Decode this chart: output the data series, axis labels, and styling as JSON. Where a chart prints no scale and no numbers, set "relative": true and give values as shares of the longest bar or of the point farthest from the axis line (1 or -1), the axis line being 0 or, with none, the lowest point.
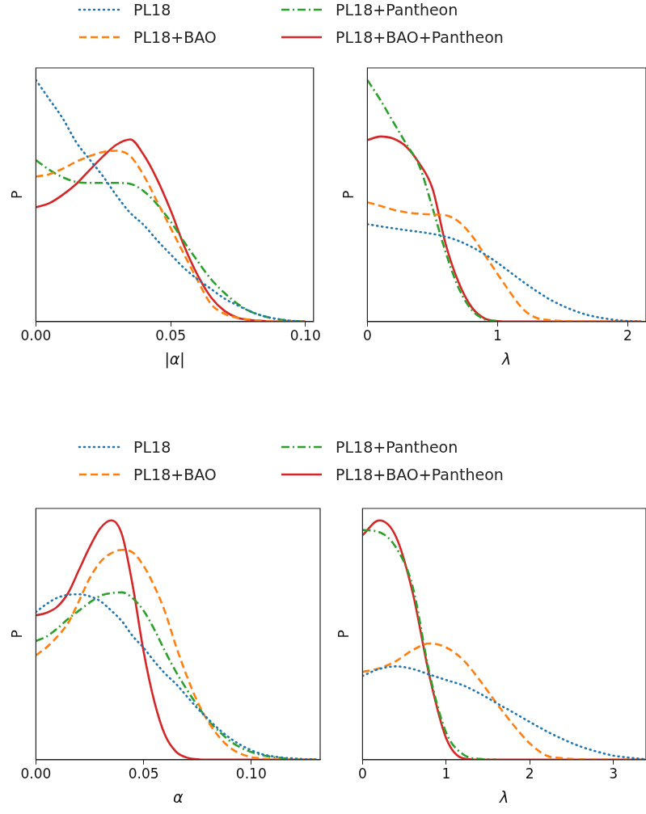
{
  "chart_data": [
    {
      "type": "line",
      "relative": true,
      "xlabel": "|α|",
      "ylabel": "P",
      "legend": "top",
      "xlim": [
        0,
        0.103
      ],
      "xticks": [
        {
          "value": 0,
          "label": "0.00"
        },
        {
          "value": 0.05,
          "label": "0.05"
        },
        {
          "value": 0.1,
          "label": "0.10"
        }
      ],
      "x": [
        0,
        0.005,
        0.01,
        0.015,
        0.02,
        0.025,
        0.03,
        0.035,
        0.04,
        0.045,
        0.05,
        0.055,
        0.06,
        0.065,
        0.07,
        0.075,
        0.08,
        0.085,
        0.09,
        0.095,
        0.1
      ],
      "series": [
        {
          "name": "PL18",
          "color": "#1f77b4",
          "line_style": "dotted",
          "values": [
            1.0,
            0.92,
            0.84,
            0.742,
            0.67,
            0.6,
            0.52,
            0.45,
            0.4,
            0.336,
            0.278,
            0.221,
            0.175,
            0.135,
            0.095,
            0.066,
            0.04,
            0.021,
            0.01,
            0.003,
            0
          ]
        },
        {
          "name": "PL18+BAO",
          "color": "#ff7f0e",
          "line_style": "dashed",
          "values": [
            0.6,
            0.61,
            0.633,
            0.662,
            0.685,
            0.702,
            0.707,
            0.685,
            0.605,
            0.496,
            0.387,
            0.278,
            0.17,
            0.072,
            0.032,
            0.015,
            0.007,
            0.002,
            0,
            0,
            0
          ]
        },
        {
          "name": "PL18+Pantheon",
          "color": "#2ca02c",
          "line_style": "dashdot",
          "values": [
            0.668,
            0.628,
            0.597,
            0.578,
            0.574,
            0.574,
            0.574,
            0.57,
            0.54,
            0.485,
            0.414,
            0.33,
            0.25,
            0.175,
            0.118,
            0.072,
            0.04,
            0.021,
            0.009,
            0.003,
            0
          ]
        },
        {
          "name": "PL18+BAO+Pantheon",
          "color": "#d62728",
          "line_style": "solid",
          "values": [
            0.473,
            0.49,
            0.525,
            0.57,
            0.628,
            0.685,
            0.733,
            0.754,
            0.69,
            0.588,
            0.46,
            0.313,
            0.192,
            0.1,
            0.044,
            0.015,
            0.006,
            0.002,
            0,
            0,
            0
          ]
        }
      ]
    },
    {
      "type": "line",
      "relative": true,
      "xlabel": "λ",
      "ylabel": "P",
      "xlim": [
        0,
        2.14
      ],
      "xticks": [
        0,
        1,
        2
      ],
      "x": [
        0,
        0.1,
        0.2,
        0.3,
        0.4,
        0.5,
        0.6,
        0.7,
        0.8,
        0.9,
        1.0,
        1.1,
        1.2,
        1.3,
        1.4,
        1.5,
        1.6,
        1.7,
        1.8,
        1.9,
        2.0,
        2.1
      ],
      "series": [
        {
          "color": "#1f77b4",
          "line_style": "dotted",
          "values": [
            0.403,
            0.394,
            0.386,
            0.378,
            0.371,
            0.363,
            0.352,
            0.334,
            0.309,
            0.279,
            0.243,
            0.203,
            0.163,
            0.126,
            0.092,
            0.065,
            0.043,
            0.026,
            0.015,
            0.007,
            0.002,
            0
          ]
        },
        {
          "color": "#ff7f0e",
          "line_style": "dashed",
          "values": [
            0.494,
            0.479,
            0.463,
            0.452,
            0.446,
            0.443,
            0.44,
            0.414,
            0.357,
            0.277,
            0.197,
            0.118,
            0.049,
            0.015,
            0.006,
            0.002,
            0,
            0,
            0,
            0,
            0,
            0
          ]
        },
        {
          "color": "#2ca02c",
          "line_style": "dashdot",
          "values": [
            1.0,
            0.917,
            0.825,
            0.734,
            0.643,
            0.471,
            0.289,
            0.14,
            0.049,
            0.009,
            0,
            null,
            null,
            null,
            null,
            null,
            null,
            null,
            null,
            null,
            null,
            null
          ]
        },
        {
          "color": "#d62728",
          "line_style": "solid",
          "values": [
            0.751,
            0.766,
            0.757,
            0.723,
            0.654,
            0.551,
            0.323,
            0.163,
            0.06,
            0.013,
            0.002,
            0,
            0,
            0,
            0,
            0,
            0,
            0,
            0,
            0,
            0,
            0
          ]
        }
      ]
    },
    {
      "type": "line",
      "relative": true,
      "xlabel": "α",
      "ylabel": "P",
      "legend": "top",
      "xlim": [
        0,
        0.132
      ],
      "xticks": [
        {
          "value": 0,
          "label": "0.00"
        },
        {
          "value": 0.05,
          "label": "0.05"
        },
        {
          "value": 0.1,
          "label": "0.10"
        }
      ],
      "x": [
        0,
        0.005,
        0.01,
        0.015,
        0.02,
        0.025,
        0.03,
        0.035,
        0.04,
        0.045,
        0.05,
        0.055,
        0.06,
        0.065,
        0.07,
        0.075,
        0.08,
        0.085,
        0.09,
        0.095,
        0.1,
        0.105,
        0.11,
        0.115,
        0.12,
        0.125,
        0.13
      ],
      "series": [
        {
          "name": "PL18",
          "color": "#1f77b4",
          "line_style": "dotted",
          "values": [
            0.617,
            0.651,
            0.677,
            0.689,
            0.691,
            0.683,
            0.662,
            0.623,
            0.578,
            0.516,
            0.468,
            0.411,
            0.36,
            0.317,
            0.266,
            0.215,
            0.17,
            0.127,
            0.091,
            0.062,
            0.04,
            0.023,
            0.014,
            0.008,
            0.005,
            0.002,
            0.001
          ]
        },
        {
          "name": "PL18+BAO",
          "color": "#ff7f0e",
          "line_style": "dashed",
          "values": [
            0.436,
            0.47,
            0.515,
            0.572,
            0.663,
            0.759,
            0.827,
            0.863,
            0.877,
            0.866,
            0.81,
            0.725,
            0.617,
            0.476,
            0.351,
            0.243,
            0.159,
            0.096,
            0.051,
            0.025,
            0.011,
            0.005,
            0.001,
            0,
            0,
            0,
            0
          ]
        },
        {
          "name": "PL18+Pantheon",
          "color": "#2ca02c",
          "line_style": "dashdot",
          "values": [
            0.496,
            0.515,
            0.549,
            0.589,
            0.623,
            0.657,
            0.685,
            0.696,
            0.699,
            0.674,
            0.623,
            0.544,
            0.453,
            0.368,
            0.294,
            0.227,
            0.164,
            0.119,
            0.079,
            0.051,
            0.032,
            0.019,
            0.011,
            0.006,
            0.002,
            0.001,
            0
          ]
        },
        {
          "name": "PL18+BAO+Pantheon",
          "color": "#d62728",
          "line_style": "solid",
          "values": [
            0.603,
            0.614,
            0.64,
            0.697,
            0.793,
            0.889,
            0.968,
            1.0,
            0.94,
            0.725,
            0.453,
            0.243,
            0.102,
            0.034,
            0.009,
            0.002,
            0,
            0,
            0,
            0,
            0,
            0,
            0,
            0,
            0,
            0,
            0
          ]
        }
      ]
    },
    {
      "type": "line",
      "relative": true,
      "xlabel": "λ",
      "ylabel": "P",
      "xlim": [
        0,
        3.39
      ],
      "xticks": [
        0,
        1,
        2,
        3
      ],
      "x": [
        0,
        0.2,
        0.4,
        0.6,
        0.8,
        1.0,
        1.2,
        1.4,
        1.6,
        1.8,
        2.0,
        2.2,
        2.4,
        2.6,
        2.8,
        3.0,
        3.2,
        3.38
      ],
      "series": [
        {
          "color": "#1f77b4",
          "line_style": "dotted",
          "values": [
            0.35,
            0.379,
            0.39,
            0.379,
            0.356,
            0.333,
            0.311,
            0.277,
            0.237,
            0.198,
            0.158,
            0.119,
            0.085,
            0.056,
            0.034,
            0.017,
            0.008,
            0.002
          ]
        },
        {
          "color": "#ff7f0e",
          "line_style": "dashed",
          "values": [
            0.367,
            0.382,
            0.412,
            0.458,
            0.486,
            0.469,
            0.418,
            0.333,
            0.237,
            0.147,
            0.068,
            0.017,
            0.006,
            0.001,
            0,
            0,
            0,
            0
          ]
        },
        {
          "color": "#2ca02c",
          "line_style": "dashdot",
          "values": [
            0.96,
            0.951,
            0.887,
            0.723,
            0.362,
            0.113,
            0.023,
            0.003,
            0,
            null,
            null,
            null,
            null,
            null,
            null,
            null,
            null,
            null
          ]
        },
        {
          "color": "#d62728",
          "line_style": "solid",
          "values": [
            0.938,
            1.0,
            0.932,
            0.698,
            0.35,
            0.09,
            0.006,
            0,
            0,
            0,
            0,
            0,
            0,
            0,
            0,
            0,
            0,
            0
          ]
        }
      ]
    }
  ]
}
